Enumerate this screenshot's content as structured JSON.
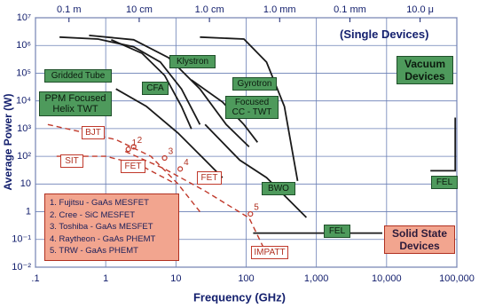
{
  "chart_data": {
    "type": "line",
    "x_label": "Frequency (GHz)",
    "y_label": "Average Power (W)",
    "log_x": true,
    "log_y": true,
    "grid": true,
    "xlim": [
      0.1,
      100000
    ],
    "ylim": [
      0.01,
      10000000
    ],
    "xticks": [
      {
        "value": 0.1,
        "label": ".1"
      },
      1,
      10,
      100,
      {
        "value": 1000,
        "label": "1,000"
      },
      {
        "value": 10000,
        "label": "10,000"
      },
      {
        "value": 100000,
        "label": "100,000"
      }
    ],
    "yticks": [
      {
        "value": 0.01,
        "label": "10⁻²"
      },
      {
        "value": 0.1,
        "label": "10⁻¹"
      },
      1,
      10,
      {
        "value": 100,
        "label": "10²"
      },
      {
        "value": 1000,
        "label": "10³"
      },
      {
        "value": 10000,
        "label": "10⁴"
      },
      {
        "value": 100000,
        "label": "10⁵"
      },
      {
        "value": 1000000,
        "label": "10⁶"
      },
      {
        "value": 10000000,
        "label": "10⁷"
      }
    ],
    "x2ticks": [
      {
        "value": 0.3,
        "label": "0.1 m"
      },
      {
        "value": 3,
        "label": "10 cm"
      },
      {
        "value": 30,
        "label": "1.0 cm"
      },
      {
        "value": 300,
        "label": "1.0 mm"
      },
      {
        "value": 3000,
        "label": "0.1 mm"
      },
      {
        "value": 30000,
        "label": "10.0 μ"
      }
    ],
    "series": [
      {
        "name": "Gridded Tube",
        "color": "#1a1a1a",
        "style": "solid",
        "box": "green",
        "x": [
          0.22,
          0.78,
          2.5,
          6,
          12,
          22
        ],
        "values": [
          2000000,
          1700000,
          900000,
          250000,
          27000,
          1400
        ]
      },
      {
        "name": "PPM Focused Helix TWT",
        "color": "#1a1a1a",
        "style": "solid",
        "box": "green",
        "x": [
          1.4,
          3.8,
          10.7,
          26,
          46
        ],
        "values": [
          27000,
          6300,
          690,
          73,
          17
        ]
      },
      {
        "name": "CFA",
        "color": "#1a1a1a",
        "style": "solid",
        "box": "green",
        "x": [
          1.2,
          3.3,
          6.9,
          12,
          16.6
        ],
        "values": [
          1600000,
          520000,
          83000,
          6300,
          980
        ]
      },
      {
        "name": "Klystron",
        "color": "#1a1a1a",
        "style": "solid",
        "box": "green",
        "x": [
          0.58,
          2.5,
          7.9,
          22,
          52,
          110
        ],
        "values": [
          2300000,
          1600000,
          360000,
          27000,
          1400,
          220
        ]
      },
      {
        "name": "Gyrotron",
        "color": "#1a1a1a",
        "style": "solid",
        "box": "green",
        "x": [
          22,
          93,
          195,
          350,
          540
        ],
        "values": [
          2000000,
          1700000,
          250000,
          6300,
          13
        ]
      },
      {
        "name": "Focused CC - TWT",
        "color": "#1a1a1a",
        "style": "solid",
        "box": "green",
        "x": [
          16.6,
          46,
          93,
          145
        ],
        "values": [
          57000,
          9100,
          1400,
          320
        ]
      },
      {
        "name": "BWO",
        "color": "#1a1a1a",
        "style": "solid",
        "box": "green",
        "x": [
          26,
          81,
          195,
          720
        ],
        "values": [
          1400,
          73,
          17,
          0.62
        ]
      },
      {
        "name": "FEL",
        "color": "#1a1a1a",
        "style": "solid",
        "box": "green",
        "x": [
          42000,
          95000,
          95000
        ],
        "values": [
          30,
          30,
          2500
        ]
      },
      {
        "name": "FEL",
        "color": "#1a1a1a",
        "style": "solid",
        "box": "green",
        "x": [
          126,
          8700
        ],
        "values": [
          0.17,
          0.17
        ]
      },
      {
        "name": "BJT",
        "color": "#c0392b",
        "style": "dashed",
        "box": "red",
        "x": [
          0.15,
          1.4,
          4.4,
          10.7,
          22
        ],
        "values": [
          1400,
          400,
          100,
          10,
          1
        ]
      },
      {
        "name": "SIT",
        "color": "#c0392b",
        "style": "dashed",
        "box": "red",
        "x": [
          0.2,
          1,
          3,
          10
        ],
        "values": [
          100,
          100,
          50,
          10
        ]
      },
      {
        "name": "IMPATT",
        "color": "#c0392b",
        "style": "dashed",
        "box": "red",
        "x": [
          1.9,
          6.9,
          26,
          110,
          195
        ],
        "values": [
          150,
          35,
          5.6,
          0.6,
          0.03
        ]
      }
    ],
    "points": {
      "color": "#c0392b",
      "x": [
        2.1,
        2.5,
        6.9,
        11.5,
        115
      ],
      "values": [
        180,
        220,
        87,
        35,
        0.83
      ],
      "labels": [
        1,
        2,
        3,
        4,
        5
      ]
    },
    "annotations": [
      "FET",
      "FET"
    ],
    "notes": [
      "(Single Devices)",
      "Vacuum Devices",
      "Solid State Devices"
    ],
    "devices": [
      "1. Fujitsu - GaAs MESFET",
      "2. Cree - SiC MESFET",
      "3. Toshiba - GaAs MESFET",
      "4. Raytheon - GaAs PHEMT",
      "5. TRW - GaAs PHEMT"
    ]
  }
}
